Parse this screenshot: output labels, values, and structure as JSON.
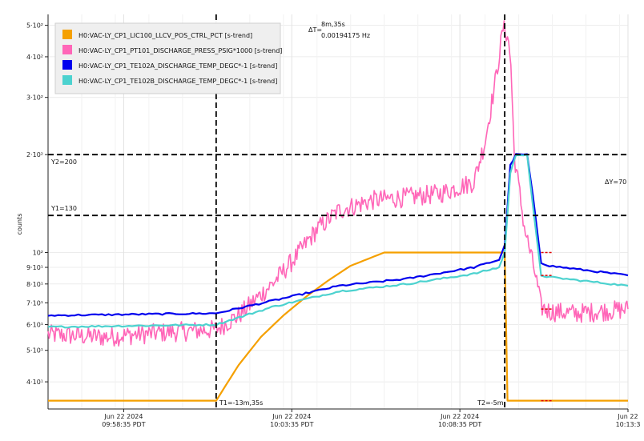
{
  "chart_data": {
    "type": "line",
    "title": "",
    "ylabel": "counts",
    "xlabel": "",
    "y_scale": "log",
    "ylim": [
      33,
      540
    ],
    "xlim": [
      "2024-06-22T09:56:20",
      "2024-06-22T10:13:35"
    ],
    "grid": true,
    "legend_placement": "top-left",
    "y_ticks": [
      {
        "value": 40,
        "label": "4·10¹"
      },
      {
        "value": 50,
        "label": "5·10¹"
      },
      {
        "value": 60,
        "label": "6·10¹"
      },
      {
        "value": 70,
        "label": "7·10¹"
      },
      {
        "value": 80,
        "label": "8·10¹"
      },
      {
        "value": 90,
        "label": "9·10¹"
      },
      {
        "value": 100,
        "label": "10²"
      },
      {
        "value": 200,
        "label": "2·10²"
      },
      {
        "value": 300,
        "label": "3·10²"
      },
      {
        "value": 400,
        "label": "4·10²"
      },
      {
        "value": 500,
        "label": "5·10²"
      }
    ],
    "x_ticks": [
      {
        "value": "2024-06-22T09:58:35",
        "date": "Jun 22 2024",
        "time": "09:58:35 PDT"
      },
      {
        "value": "2024-06-22T10:03:35",
        "date": "Jun 22 2024",
        "time": "10:03:35 PDT"
      },
      {
        "value": "2024-06-22T10:08:35",
        "date": "Jun 22 2024",
        "time": "10:08:35 PDT"
      },
      {
        "value": "2024-06-22T10:13:35",
        "date": "Jun 22",
        "time": "10:13:3"
      }
    ],
    "cursors": {
      "t1": {
        "x": "2024-06-22T10:01:20",
        "label": "T1=-13m,35s"
      },
      "t2": {
        "x": "2024-06-22T10:09:55",
        "label": "T2=-5m"
      },
      "delta_t": {
        "prefix": "ΔT=",
        "value": "8m,35s",
        "freq": "0.00194175 Hz"
      },
      "y1": {
        "y": 130,
        "label": "Y1=130"
      },
      "y2": {
        "y": 200,
        "label": "Y2=200"
      },
      "delta_y": {
        "label": "ΔY=70"
      }
    },
    "series": [
      {
        "name": "H0:VAC-LY_CP1_LIC100_LLCV_POS_CTRL_PCT [s-trend]",
        "color": "#f5a000",
        "points": [
          [
            "2024-06-22T09:56:20",
            35
          ],
          [
            "2024-06-22T10:01:20",
            35
          ],
          [
            "2024-06-22T10:02:00",
            45
          ],
          [
            "2024-06-22T10:02:40",
            55
          ],
          [
            "2024-06-22T10:03:20",
            64
          ],
          [
            "2024-06-22T10:04:00",
            73
          ],
          [
            "2024-06-22T10:04:40",
            82
          ],
          [
            "2024-06-22T10:05:20",
            91
          ],
          [
            "2024-06-22T10:06:20",
            100
          ],
          [
            "2024-06-22T10:09:55",
            100
          ],
          [
            "2024-06-22T10:10:00",
            35
          ],
          [
            "2024-06-22T10:13:35",
            35
          ]
        ]
      },
      {
        "name": "H0:VAC-LY_CP1_PT101_DISCHARGE_PRESS_PSIG*1000 [s-trend]",
        "color": "#ff66b8",
        "points": [
          [
            "2024-06-22T09:56:20",
            56
          ],
          [
            "2024-06-22T09:58:00",
            55
          ],
          [
            "2024-06-22T10:00:00",
            57
          ],
          [
            "2024-06-22T10:01:20",
            58
          ],
          [
            "2024-06-22T10:02:00",
            64
          ],
          [
            "2024-06-22T10:03:00",
            80
          ],
          [
            "2024-06-22T10:03:40",
            96
          ],
          [
            "2024-06-22T10:04:20",
            118
          ],
          [
            "2024-06-22T10:05:00",
            135
          ],
          [
            "2024-06-22T10:06:00",
            145
          ],
          [
            "2024-06-22T10:07:00",
            148
          ],
          [
            "2024-06-22T10:08:00",
            152
          ],
          [
            "2024-06-22T10:09:00",
            165
          ],
          [
            "2024-06-22T10:09:20",
            220
          ],
          [
            "2024-06-22T10:09:40",
            350
          ],
          [
            "2024-06-22T10:09:52",
            490
          ],
          [
            "2024-06-22T10:10:00",
            470
          ],
          [
            "2024-06-22T10:10:06",
            380
          ],
          [
            "2024-06-22T10:10:12",
            200
          ],
          [
            "2024-06-22T10:10:30",
            120
          ],
          [
            "2024-06-22T10:10:50",
            85
          ],
          [
            "2024-06-22T10:11:00",
            68
          ],
          [
            "2024-06-22T10:11:15",
            66
          ],
          [
            "2024-06-22T10:12:00",
            65
          ],
          [
            "2024-06-22T10:13:35",
            67
          ]
        ]
      },
      {
        "name": "H0:VAC-LY_CP1_TE102A_DISCHARGE_TEMP_DEGC*-1 [s-trend]",
        "color": "#0000ee",
        "points": [
          [
            "2024-06-22T09:56:20",
            64
          ],
          [
            "2024-06-22T10:01:20",
            65
          ],
          [
            "2024-06-22T10:03:00",
            71
          ],
          [
            "2024-06-22T10:05:00",
            79
          ],
          [
            "2024-06-22T10:07:00",
            83
          ],
          [
            "2024-06-22T10:09:00",
            90
          ],
          [
            "2024-06-22T10:09:45",
            95
          ],
          [
            "2024-06-22T10:09:55",
            105
          ],
          [
            "2024-06-22T10:10:05",
            185
          ],
          [
            "2024-06-22T10:10:15",
            200
          ],
          [
            "2024-06-22T10:10:35",
            200
          ],
          [
            "2024-06-22T10:10:45",
            150
          ],
          [
            "2024-06-22T10:11:00",
            93
          ],
          [
            "2024-06-22T10:11:15",
            91
          ],
          [
            "2024-06-22T10:13:35",
            85
          ]
        ]
      },
      {
        "name": "H0:VAC-LY_CP1_TE102B_DISCHARGE_TEMP_DEGC*-1 [s-trend]",
        "color": "#4cd2cf",
        "points": [
          [
            "2024-06-22T09:56:20",
            59
          ],
          [
            "2024-06-22T10:01:20",
            60
          ],
          [
            "2024-06-22T10:03:00",
            68
          ],
          [
            "2024-06-22T10:05:00",
            76
          ],
          [
            "2024-06-22T10:07:00",
            80
          ],
          [
            "2024-06-22T10:09:00",
            86
          ],
          [
            "2024-06-22T10:09:45",
            90
          ],
          [
            "2024-06-22T10:09:55",
            100
          ],
          [
            "2024-06-22T10:10:05",
            175
          ],
          [
            "2024-06-22T10:10:15",
            200
          ],
          [
            "2024-06-22T10:10:35",
            200
          ],
          [
            "2024-06-22T10:10:45",
            140
          ],
          [
            "2024-06-22T10:11:00",
            85
          ],
          [
            "2024-06-22T10:11:15",
            84
          ],
          [
            "2024-06-22T10:13:35",
            79
          ]
        ]
      }
    ]
  }
}
